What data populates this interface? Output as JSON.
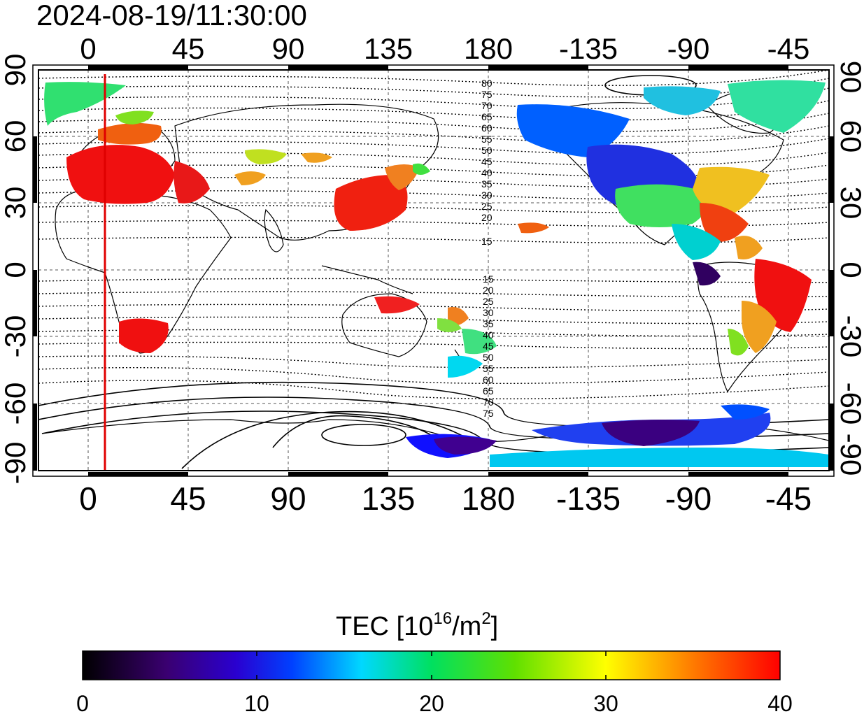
{
  "title": "2024-08-19/11:30:00",
  "map": {
    "top_longitude_labels": [
      "0",
      "45",
      "90",
      "135",
      "180",
      "-135",
      "-90",
      "-45"
    ],
    "bottom_longitude_labels": [
      "0",
      "45",
      "90",
      "135",
      "180",
      "-135",
      "-90",
      "-45"
    ],
    "left_latitude_labels": [
      "90",
      "60",
      "30",
      "0",
      "-30",
      "-60",
      "-90"
    ],
    "right_latitude_labels": [
      "90",
      "60",
      "30",
      "0",
      "-30",
      "-60",
      "-90"
    ],
    "magnetic_latitude_labels_north": [
      "80",
      "75",
      "70",
      "65",
      "60",
      "55",
      "50",
      "45",
      "40",
      "35",
      "30",
      "25",
      "20",
      "15"
    ],
    "magnetic_latitude_labels_south": [
      "15",
      "20",
      "25",
      "30",
      "35",
      "40",
      "45",
      "50",
      "55",
      "60",
      "65",
      "70",
      "75"
    ],
    "terminator_color": "#e00000",
    "grid": true
  },
  "colorbar": {
    "title_main": "TEC  [10",
    "title_sup1": "16",
    "title_mid": "/m",
    "title_sup2": "2",
    "title_end": "]",
    "tick_labels": [
      "0",
      "10",
      "20",
      "30",
      "40"
    ],
    "range": [
      0,
      40
    ],
    "colors": [
      "#000000",
      "#4b0082",
      "#0000ff",
      "#00e5ff",
      "#00e000",
      "#ffff00",
      "#ff8000",
      "#ff0000"
    ]
  }
}
